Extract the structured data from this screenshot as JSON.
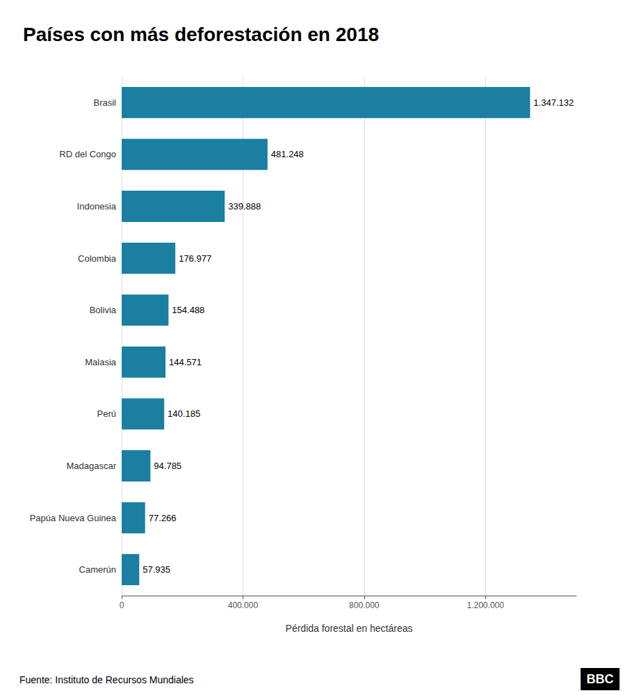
{
  "chart_data": {
    "type": "bar",
    "orientation": "horizontal",
    "title": "Países con más deforestación en 2018",
    "categories": [
      "Brasil",
      "RD del Congo",
      "Indonesia",
      "Colombia",
      "Bolivia",
      "Malasia",
      "Perú",
      "Madagascar",
      "Papúa Nueva Guinea",
      "Camerún"
    ],
    "values": [
      1347132,
      481248,
      339888,
      176977,
      154488,
      144571,
      140185,
      94785,
      77266,
      57935
    ],
    "value_labels": [
      "1.347.132",
      "481.248",
      "339.888",
      "176.977",
      "154.488",
      "144.571",
      "140.185",
      "94.785",
      "77.266",
      "57.935"
    ],
    "data_labels": true,
    "color": "#1a7fa0",
    "xlabel": "Pérdida forestal en hectáreas",
    "xlim": [
      0,
      1500000
    ],
    "xticks": [
      0,
      {
        "value": 400000,
        "label": "400.000"
      },
      {
        "value": 800000,
        "label": "800.000"
      },
      {
        "value": 1200000,
        "label": "1.200.000"
      }
    ],
    "grid": true,
    "annotations": [
      "Fuente: Instituto de Recursos Mundiales",
      "BBC"
    ]
  }
}
